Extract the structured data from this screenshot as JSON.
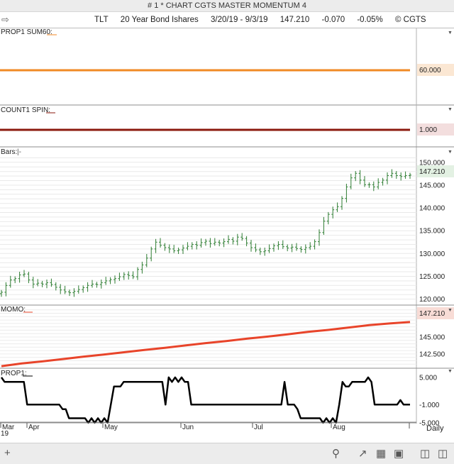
{
  "window": {
    "title": "# 1 * CHART CGTS MASTER MOMENTUM 4"
  },
  "symbol_bar": {
    "symbol": "TLT",
    "description": "20 Year Bond Ishares",
    "date_range": "3/20/19 - 9/3/19",
    "last": "147.210",
    "change": "-0.070",
    "change_pct": "-0.05%",
    "copyright": "© CGTS"
  },
  "timeframe": "Daily",
  "x_axis": {
    "labels": [
      "Mar",
      "Apr",
      "May",
      "Jun",
      "Jul",
      "Aug"
    ],
    "year_label": "19"
  },
  "icons": {
    "back": "back-arrow-icon",
    "add": "plus-icon",
    "search": "search-icon",
    "line_draw": "line-draw-icon",
    "grid": "grid-icon",
    "layout": "layout-icon",
    "book": "book-icon",
    "compare": "compare-icon"
  },
  "chart_data": [
    {
      "type": "line",
      "title": "PROP1 SUM60:",
      "series": [
        {
          "values": [
            60,
            60
          ]
        }
      ],
      "value_label": "60.000",
      "color": "#f08a24"
    },
    {
      "type": "line",
      "title": "COUNT1 SPIN:",
      "series": [
        {
          "values": [
            1,
            1
          ]
        }
      ],
      "value_label": "1.000",
      "color": "#8b1a0e"
    },
    {
      "type": "bar",
      "subtype": "ohlc",
      "title": "Bars:",
      "ylim": [
        119,
        152
      ],
      "y_ticks": [
        "150.000",
        "145.000",
        "140.000",
        "135.000",
        "130.000",
        "125.000",
        "120.000"
      ],
      "last_label": "147.210",
      "color": "#2e7d32",
      "closes": [
        121.5,
        123,
        124.2,
        124.5,
        125.3,
        125.5,
        124.2,
        123.3,
        123.5,
        123.3,
        123.6,
        123.2,
        122.6,
        122,
        121.6,
        121.4,
        121.7,
        122.1,
        122.5,
        123,
        123.3,
        123.2,
        123.6,
        124,
        124.3,
        124.5,
        124.9,
        125.4,
        125.2,
        124.9,
        126.5,
        127.5,
        129,
        131,
        132.5,
        131.8,
        131.3,
        131,
        130.6,
        130.8,
        131.2,
        131.6,
        132,
        131.8,
        132.4,
        132.7,
        132.2,
        132.5,
        132.3,
        132.6,
        133.1,
        132.7,
        133.6,
        133.3,
        132.3,
        131.3,
        130.8,
        130.4,
        130.6,
        131.1,
        131.7,
        132,
        131.5,
        131.2,
        131.4,
        131.1,
        130.9,
        131.3,
        131.6,
        132.6,
        134.6,
        137.1,
        138.6,
        139.6,
        140.3,
        142.1,
        144.6,
        146.6,
        147.6,
        146.1,
        145.1,
        145.1,
        144.6,
        145.6,
        146.1,
        147.1,
        147.6,
        147.1,
        146.9,
        147.1,
        147.21
      ],
      "x_labels": [
        "Mar",
        "Apr",
        "May",
        "Jun",
        "Jul",
        "Aug"
      ]
    },
    {
      "type": "line",
      "title": "MOMO:",
      "ylim": [
        140.5,
        149.5
      ],
      "y_ticks": [
        "145.000",
        "142.500"
      ],
      "last_label": "147.210",
      "color": "#e8442a",
      "series": [
        {
          "values": [
            140.7,
            141.1,
            141.4,
            141.75,
            142.1,
            142.4,
            142.75,
            143.1,
            143.4,
            143.75,
            144.1,
            144.4,
            144.75,
            145.05,
            145.4,
            145.75,
            146.05,
            146.4,
            146.75,
            147.0,
            147.21
          ]
        }
      ]
    },
    {
      "type": "line",
      "title": "PROP1:",
      "ylim": [
        -4.7,
        6.7
      ],
      "y_ticks": [
        "5.000",
        "-1.000",
        "-5.000"
      ],
      "color": "#000000",
      "series": [
        {
          "values": [
            5,
            4,
            4,
            4,
            4,
            4,
            4,
            4,
            -1,
            -1,
            -1,
            -1,
            -1,
            -1,
            -1,
            -1,
            -1,
            -1,
            -1,
            -2,
            -2,
            -4,
            -4,
            -4,
            -4,
            -4,
            -4,
            -5,
            -4,
            -5,
            -4,
            -5,
            -4,
            -5,
            -1,
            3,
            3,
            3,
            4,
            4,
            4,
            4,
            4,
            4,
            4,
            4,
            4,
            4,
            4,
            4,
            4,
            -1,
            5,
            4,
            5,
            4,
            5,
            4,
            4,
            -1,
            -1,
            -1,
            -1,
            -1,
            -1,
            -1,
            -1,
            -1,
            -1,
            -1,
            -1,
            -1,
            -1,
            -1,
            -1,
            -1,
            -1,
            -1,
            -1,
            -1,
            -1,
            -1,
            -1,
            -1,
            -1,
            -1,
            -1,
            -1,
            4,
            -1,
            -1,
            -1,
            -2,
            -4,
            -4,
            -4,
            -4,
            -4,
            -4,
            -4,
            -5,
            -4,
            -5,
            -4,
            -5,
            -1,
            4,
            3,
            3,
            4,
            4,
            4,
            4,
            4,
            5,
            4,
            -1,
            -1,
            -1,
            -1,
            -1,
            -1,
            -1,
            -1,
            0,
            -1,
            -1,
            -1
          ]
        }
      ]
    }
  ]
}
